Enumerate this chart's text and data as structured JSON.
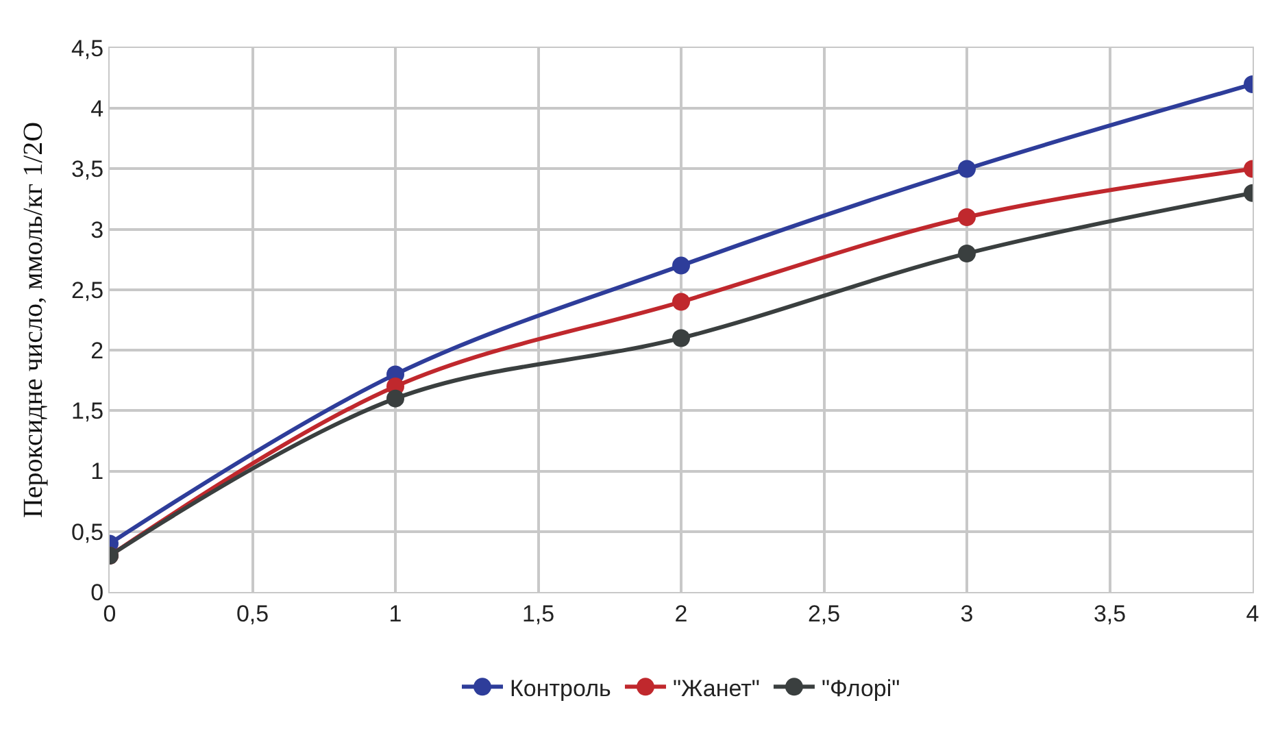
{
  "chart_data": {
    "type": "line",
    "ylabel": "Пероксидне число, ммоль/кг 1/2О",
    "x": [
      0,
      1,
      2,
      3,
      4
    ],
    "series": [
      {
        "name": "Контроль",
        "color": "#2e3d9a",
        "values": [
          0.4,
          1.8,
          2.7,
          3.5,
          4.2
        ]
      },
      {
        "name": "\"Жанет\"",
        "color": "#c0282d",
        "values": [
          0.3,
          1.7,
          2.4,
          3.1,
          3.5
        ]
      },
      {
        "name": "\"Флорі\"",
        "color": "#3a3f3f",
        "values": [
          0.3,
          1.6,
          2.1,
          2.8,
          3.3
        ]
      }
    ],
    "xlim": [
      0,
      4
    ],
    "xticks": [
      0,
      {
        "value": 0.5,
        "label": "0,5"
      },
      1,
      {
        "value": 1.5,
        "label": "1,5"
      },
      2,
      {
        "value": 2.5,
        "label": "2,5"
      },
      3,
      {
        "value": 3.5,
        "label": "3,5"
      },
      4
    ],
    "ylim": [
      0,
      4.5
    ],
    "yticks": [
      0,
      {
        "value": 0.5,
        "label": "0,5"
      },
      1,
      {
        "value": 1.5,
        "label": "1,5"
      },
      2,
      {
        "value": 2.5,
        "label": "2,5"
      },
      3,
      {
        "value": 3.5,
        "label": "3,5"
      },
      4,
      {
        "value": 4.5,
        "label": "4,5"
      }
    ],
    "grid": true,
    "legend": "bottom",
    "marker": "circle",
    "line_style": "solid"
  }
}
